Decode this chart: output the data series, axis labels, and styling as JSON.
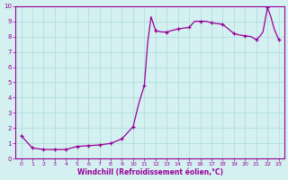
{
  "hours": [
    0,
    1,
    2,
    3,
    4,
    5,
    6,
    7,
    8,
    9,
    10,
    10.5,
    11,
    11.3,
    11.6,
    12,
    12.5,
    13,
    13.5,
    14,
    14.5,
    15,
    15.5,
    16,
    16.5,
    17,
    17.5,
    18,
    18.5,
    19,
    19.5,
    20,
    20.5,
    21,
    21.3,
    21.6,
    22,
    22.3,
    22.6,
    23
  ],
  "values": [
    1.5,
    0.7,
    0.6,
    0.6,
    0.6,
    0.8,
    0.85,
    0.9,
    1.0,
    1.3,
    2.1,
    3.6,
    4.8,
    7.6,
    9.3,
    8.4,
    8.3,
    8.3,
    8.4,
    8.5,
    8.55,
    8.6,
    9.0,
    9.0,
    9.0,
    8.9,
    8.85,
    8.8,
    8.5,
    8.2,
    8.1,
    8.05,
    8.0,
    7.8,
    8.0,
    8.3,
    9.9,
    9.3,
    8.5,
    7.8
  ],
  "marker_hours": [
    0,
    1,
    2,
    3,
    4,
    5,
    6,
    7,
    8,
    9,
    10,
    11,
    12,
    13,
    14,
    15,
    16,
    17,
    18,
    19,
    20,
    21,
    22,
    23
  ],
  "marker_values": [
    1.5,
    0.7,
    0.6,
    0.6,
    0.6,
    0.8,
    0.85,
    0.9,
    1.0,
    1.3,
    2.1,
    4.8,
    8.4,
    8.3,
    8.5,
    8.6,
    9.0,
    8.9,
    8.8,
    8.2,
    8.05,
    7.8,
    9.9,
    7.8
  ],
  "line_color": "#990099",
  "marker_color": "#990099",
  "bg_color": "#d4f0f0",
  "grid_color": "#aadddd",
  "xlabel": "Windchill (Refroidissement éolien,°C)",
  "ylim": [
    0,
    10
  ],
  "xlim_min": -0.5,
  "xlim_max": 23.5,
  "yticks": [
    0,
    1,
    2,
    3,
    4,
    5,
    6,
    7,
    8,
    9,
    10
  ],
  "xticks": [
    0,
    1,
    2,
    3,
    4,
    5,
    6,
    7,
    8,
    9,
    10,
    11,
    12,
    13,
    14,
    15,
    16,
    17,
    18,
    19,
    20,
    21,
    22,
    23
  ]
}
